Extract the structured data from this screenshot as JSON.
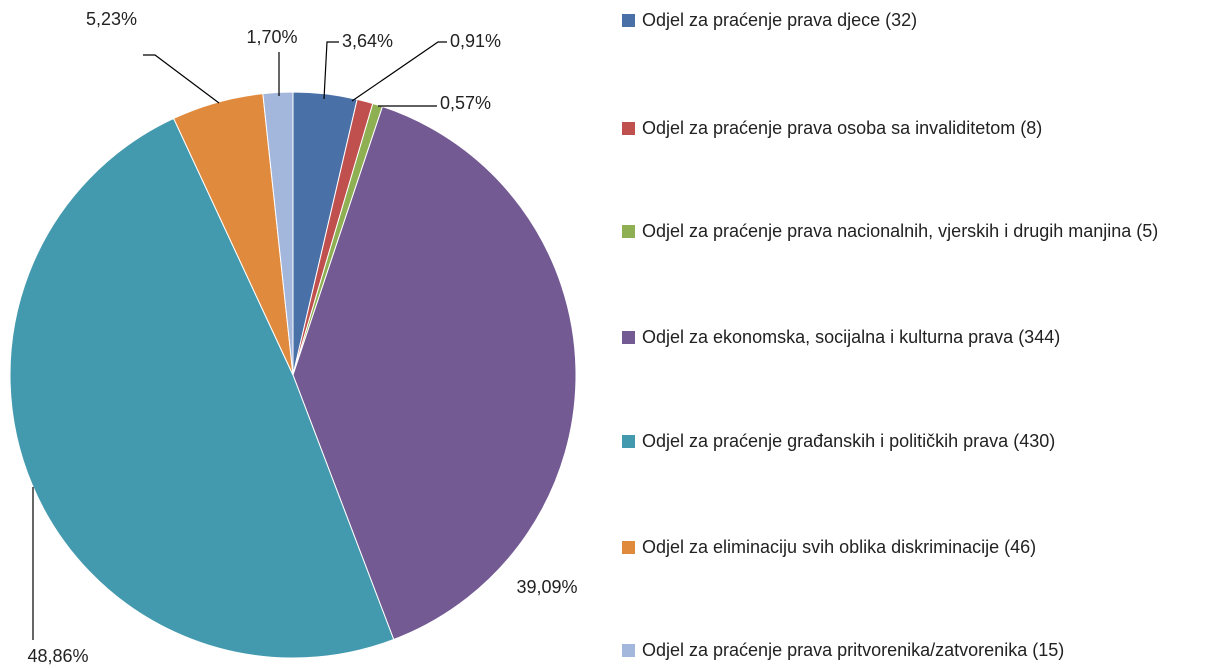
{
  "chart_data": {
    "type": "pie",
    "categories": [
      "Odjel za praćenje prava djece (32)",
      "Odjel za praćenje prava osoba sa invaliditetom (8)",
      "Odjel za praćenje prava nacionalnih, vjerskih i drugih manjina (5)",
      "Odjel za ekonomska, socijalna i kulturna prava (344)",
      "Odjel za praćenje građanskih i političkih prava (430)",
      "Odjel za eliminaciju svih oblika diskriminacije (46)",
      "Odjel za praćenje prava pritvorenika/zatvorenika (15)"
    ],
    "values": [
      3.64,
      0.91,
      0.57,
      39.09,
      48.86,
      5.23,
      1.7
    ],
    "value_labels": [
      "3,64%",
      "0,91%",
      "0,57%",
      "39,09%",
      "48,86%",
      "5,23%",
      "1,70%"
    ],
    "colors": [
      "#4a70a8",
      "#c0504d",
      "#8fb052",
      "#735a92",
      "#4399ae",
      "#e08a3e",
      "#a3b6dc"
    ],
    "legend": "right"
  }
}
